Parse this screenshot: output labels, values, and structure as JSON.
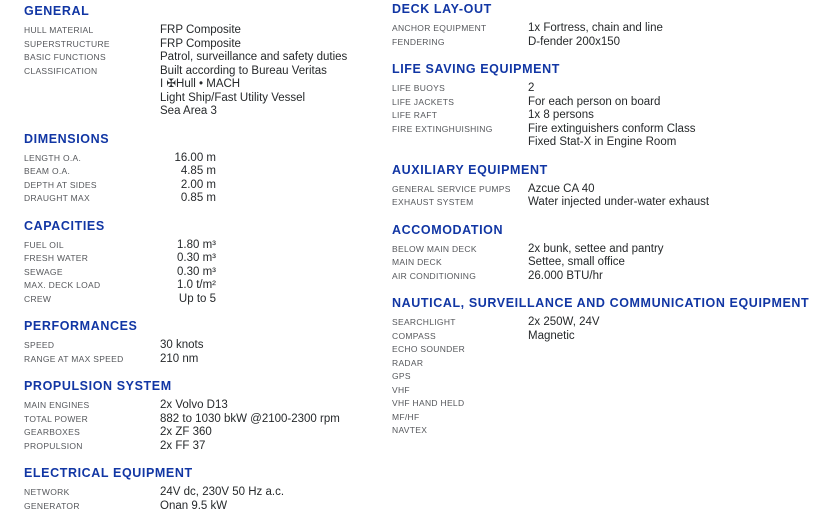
{
  "colors": {
    "heading": "#1136a4",
    "label": "#55575b",
    "value": "#26292b",
    "background": "#ffffff"
  },
  "columns": [
    {
      "name": "left",
      "sections": [
        {
          "title": "GENERAL",
          "rows": [
            {
              "label": "HULL MATERIAL",
              "values": [
                "FRP Composite"
              ]
            },
            {
              "label": "SUPERSTRUCTURE",
              "values": [
                "FRP Composite"
              ]
            },
            {
              "label": "BASIC FUNCTIONS",
              "values": [
                "Patrol, surveillance and safety duties"
              ]
            },
            {
              "label": "CLASSIFICATION",
              "values": [
                "Built according to Bureau Veritas",
                "I ✠Hull • MACH",
                "Light Ship/Fast Utility Vessel",
                "Sea Area 3"
              ]
            }
          ]
        },
        {
          "title": "DIMENSIONS",
          "numeric": true,
          "rows": [
            {
              "label": "LENGTH O.A.",
              "values": [
                "16.00 m"
              ]
            },
            {
              "label": "BEAM O.A.",
              "values": [
                "4.85 m"
              ]
            },
            {
              "label": "DEPTH AT SIDES",
              "values": [
                "2.00 m"
              ]
            },
            {
              "label": "DRAUGHT MAX",
              "values": [
                "0.85 m"
              ]
            }
          ]
        },
        {
          "title": "CAPACITIES",
          "numeric": true,
          "rows": [
            {
              "label": "FUEL OIL",
              "values": [
                "1.80 m³"
              ]
            },
            {
              "label": "FRESH WATER",
              "values": [
                "0.30 m³"
              ]
            },
            {
              "label": "SEWAGE",
              "values": [
                "0.30 m³"
              ]
            },
            {
              "label": "MAX. DECK LOAD",
              "values": [
                "1.0 t/m²"
              ]
            },
            {
              "label": "CREW",
              "values": [
                "Up to 5"
              ]
            }
          ]
        },
        {
          "title": "PERFORMANCES",
          "rows": [
            {
              "label": "SPEED",
              "values": [
                "30 knots"
              ]
            },
            {
              "label": "RANGE AT MAX SPEED",
              "values": [
                "210 nm"
              ]
            }
          ]
        },
        {
          "title": "PROPULSION SYSTEM",
          "rows": [
            {
              "label": "MAIN ENGINES",
              "values": [
                "2x Volvo D13"
              ]
            },
            {
              "label": "TOTAL POWER",
              "values": [
                "882 to 1030 bkW @2100-2300 rpm"
              ]
            },
            {
              "label": "GEARBOXES",
              "values": [
                "2x ZF 360"
              ]
            },
            {
              "label": "PROPULSION",
              "values": [
                "2x FF 37"
              ]
            }
          ]
        },
        {
          "title": "ELECTRICAL EQUIPMENT",
          "rows": [
            {
              "label": "NETWORK",
              "values": [
                "24V dc, 230V 50 Hz a.c."
              ]
            },
            {
              "label": "GENERATOR",
              "values": [
                "Onan 9.5 kW"
              ]
            }
          ]
        }
      ]
    },
    {
      "name": "right",
      "sections": [
        {
          "title": "DECK LAY-OUT",
          "rows": [
            {
              "label": "ANCHOR EQUIPMENT",
              "values": [
                "1x Fortress, chain and line"
              ]
            },
            {
              "label": "FENDERING",
              "values": [
                "D-fender 200x150"
              ]
            }
          ]
        },
        {
          "title": "LIFE SAVING EQUIPMENT",
          "rows": [
            {
              "label": "LIFE BUOYS",
              "values": [
                "2"
              ]
            },
            {
              "label": "LIFE JACKETS",
              "values": [
                "For each person on board"
              ]
            },
            {
              "label": "LIFE RAFT",
              "values": [
                "1x 8 persons"
              ]
            },
            {
              "label": "FIRE EXTINGHUISHING",
              "values": [
                "Fire extinguishers conform Class",
                "Fixed Stat-X in Engine Room"
              ]
            }
          ]
        },
        {
          "title": "AUXILIARY EQUIPMENT",
          "rows": [
            {
              "label": "GENERAL SERVICE PUMPS",
              "values": [
                "Azcue CA 40"
              ]
            },
            {
              "label": "EXHAUST SYSTEM",
              "values": [
                "Water injected under-water exhaust"
              ]
            }
          ]
        },
        {
          "title": "ACCOMODATION",
          "rows": [
            {
              "label": "BELOW MAIN DECK",
              "values": [
                "2x bunk, settee and pantry"
              ]
            },
            {
              "label": "MAIN DECK",
              "values": [
                "Settee, small office"
              ]
            },
            {
              "label": "AIR CONDITIONING",
              "values": [
                "26.000 BTU/hr"
              ]
            }
          ]
        },
        {
          "title": "NAUTICAL, SURVEILLANCE AND COMMUNICATION EQUIPMENT",
          "rows": [
            {
              "label": "SEARCHLIGHT",
              "values": [
                "2x 250W, 24V"
              ]
            },
            {
              "label": "COMPASS",
              "values": [
                "Magnetic"
              ]
            },
            {
              "label": "ECHO SOUNDER",
              "values": []
            },
            {
              "label": "RADAR",
              "values": []
            },
            {
              "label": "GPS",
              "values": []
            },
            {
              "label": "VHF",
              "values": []
            },
            {
              "label": "VHF HAND HELD",
              "values": []
            },
            {
              "label": "MF/HF",
              "values": []
            },
            {
              "label": "NAVTEX",
              "values": []
            }
          ]
        }
      ]
    }
  ]
}
